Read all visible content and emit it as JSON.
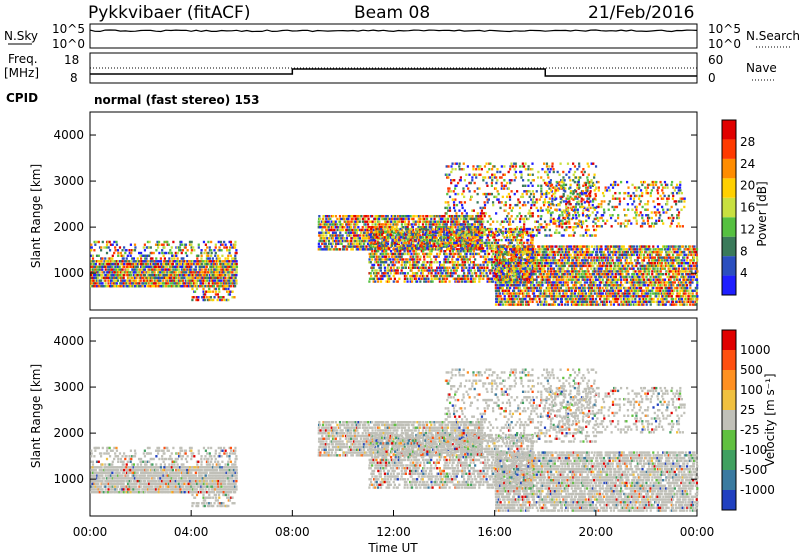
{
  "header": {
    "station": "Pykkvibaer (fitACF)",
    "beam": "Beam 08",
    "date": "21/Feb/2016"
  },
  "top_panel": {
    "nsky_label": "N.Sky",
    "nsearch_label": "N.Search",
    "left_ticks": [
      "10^5",
      "10^0"
    ],
    "right_ticks": [
      "10^5",
      "10^0"
    ],
    "freq_label_line1": "Freq.",
    "freq_label_line2": "[MHz]",
    "freq_ticks": [
      "18",
      "8"
    ],
    "nave_label": "Nave",
    "nave_ticks": [
      "60",
      "0"
    ],
    "cpid_label": "CPID",
    "cpid_text": "normal (fast stereo) 153"
  },
  "chart_data": [
    {
      "type": "heatmap",
      "name": "power",
      "ylabel": "Slant Range [km]",
      "yticks": [
        "4000",
        "3000",
        "2000",
        "1000"
      ],
      "ylim": [
        200,
        4500
      ],
      "xlim_hours": [
        0,
        24
      ],
      "colorbar": {
        "label": "Power [dB]",
        "ticks": [
          "28",
          "24",
          "20",
          "16",
          "12",
          "8",
          "4"
        ],
        "colors": [
          "#1f1fff",
          "#2b4fbf",
          "#3a7a5a",
          "#55c040",
          "#c8e040",
          "#ffd000",
          "#ff8c00",
          "#ff3a00",
          "#e00000"
        ]
      }
    },
    {
      "type": "heatmap",
      "name": "velocity",
      "ylabel": "Slant Range [km]",
      "yticks": [
        "4000",
        "3000",
        "2000",
        "1000"
      ],
      "ylim": [
        200,
        4500
      ],
      "xlim_hours": [
        0,
        24
      ],
      "colorbar": {
        "label": "Velocity [m s⁻¹]",
        "ticks": [
          "1000",
          "500",
          "100",
          "25",
          "-25",
          "-100",
          "-500",
          "-1000"
        ],
        "colors": [
          "#2040c0",
          "#3a7aa0",
          "#40a060",
          "#60c040",
          "#c0c0b8",
          "#f0c040",
          "#ff9020",
          "#ff5010",
          "#e00000"
        ]
      }
    }
  ],
  "xaxis": {
    "ticks": [
      "00:00",
      "04:00",
      "08:00",
      "12:00",
      "16:00",
      "20:00",
      "00:00"
    ],
    "label": "Time UT"
  }
}
